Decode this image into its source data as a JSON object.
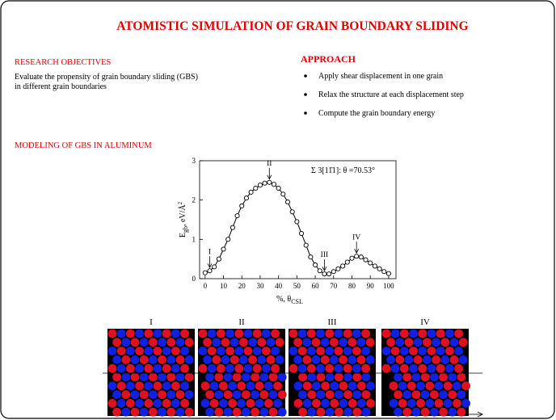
{
  "header": {
    "title": "ATOMISTIC SIMULATION OF GRAIN BOUNDARY SLIDING"
  },
  "objectives": {
    "heading": "RESEARCH OBJECTIVES",
    "lines": [
      "Evaluate the propensity of grain boundary sliding (GBS)",
      "in different grain boundaries"
    ]
  },
  "approach": {
    "heading": "APPROACH",
    "bullets": [
      "Apply shear displacement in one grain",
      "Relax the structure at each displacement step",
      "Compute the grain boundary energy"
    ]
  },
  "modeling": {
    "heading": "MODELING OF GBS IN ALUMINUM"
  },
  "chart_data": {
    "type": "line",
    "legend_title": "Σ 3[11̄1]: θ =70.53°",
    "xlabel": {
      "main": "%, θ",
      "sub": "CSL"
    },
    "ylabel": {
      "main": "E",
      "sub": "gb",
      "rest": ", eV/Å",
      "sup": "2"
    },
    "x": [
      0,
      2.5,
      5,
      7.5,
      10,
      12.5,
      15,
      17.5,
      20,
      22.5,
      25,
      27.5,
      30,
      32.5,
      35,
      37.5,
      40,
      42.5,
      45,
      47.5,
      50,
      52.5,
      55,
      57.5,
      60,
      62.5,
      65,
      67.5,
      70,
      72.5,
      75,
      77.5,
      80,
      82.5,
      85,
      87.5,
      90,
      92.5,
      95,
      97.5,
      100
    ],
    "series": [
      {
        "color": "#000000",
        "values": [
          0.15,
          0.2,
          0.3,
          0.5,
          0.75,
          1.0,
          1.3,
          1.6,
          1.85,
          2.05,
          2.2,
          2.3,
          2.38,
          2.43,
          2.45,
          2.4,
          2.3,
          2.15,
          1.95,
          1.7,
          1.45,
          1.15,
          0.85,
          0.55,
          0.35,
          0.2,
          0.12,
          0.12,
          0.18,
          0.25,
          0.32,
          0.42,
          0.52,
          0.57,
          0.55,
          0.48,
          0.4,
          0.32,
          0.25,
          0.18,
          0.13
        ]
      }
    ],
    "annotations": [
      {
        "text": "I",
        "x": 2.5,
        "y": 0.2
      },
      {
        "text": "II",
        "x": 35,
        "y": 2.45
      },
      {
        "text": "III",
        "x": 65,
        "y": 0.12
      },
      {
        "text": "IV",
        "x": 82.5,
        "y": 0.57
      }
    ],
    "xlim": [
      -3,
      104
    ],
    "ylim": [
      0,
      3
    ],
    "xticks": [
      0,
      10,
      20,
      30,
      40,
      50,
      60,
      70,
      80,
      90,
      100
    ],
    "yticks": [
      0,
      1,
      2,
      3
    ]
  },
  "panels": [
    "I",
    "II",
    "III",
    "IV"
  ]
}
